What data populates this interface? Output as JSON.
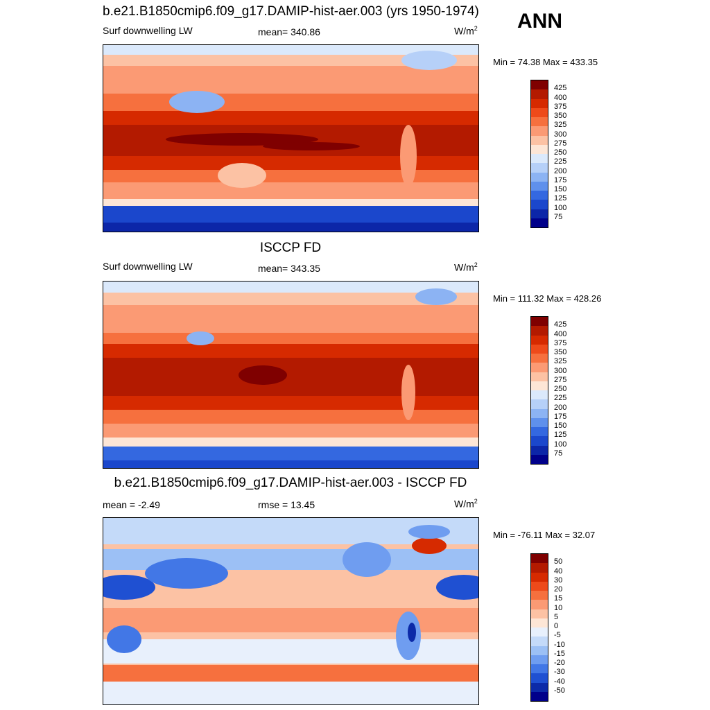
{
  "season": "ANN",
  "panels": [
    {
      "title": "b.e21.B1850cmip6.f09_g17.DAMIP-hist-aer.003 (yrs 1950-1974)",
      "left_text": "Surf downwelling LW",
      "center_text": "mean= 340.86",
      "units_base": "W/m",
      "units_sup": "2",
      "minmax": "Min =  74.38 Max = 433.35",
      "kind": "model"
    },
    {
      "title": "ISCCP FD",
      "left_text": "Surf downwelling LW",
      "center_text": "mean= 343.35",
      "units_base": "W/m",
      "units_sup": "2",
      "minmax": "Min = 111.32 Max = 428.26",
      "kind": "obs"
    },
    {
      "title": "b.e21.B1850cmip6.f09_g17.DAMIP-hist-aer.003 - ISCCP FD",
      "left_text": "mean =  -2.49",
      "center_text": "rmse =  13.45",
      "units_base": "W/m",
      "units_sup": "2",
      "minmax": "Min = -76.11 Max =  32.07",
      "kind": "diff"
    }
  ],
  "colorbar_abs": {
    "labels": [
      "425",
      "400",
      "375",
      "350",
      "325",
      "300",
      "275",
      "250",
      "225",
      "200",
      "175",
      "150",
      "125",
      "100",
      "75"
    ],
    "colors": [
      "#7f0000",
      "#b31a00",
      "#d62a00",
      "#ee4a1a",
      "#f6703e",
      "#fb9a74",
      "#fcc2a4",
      "#fde6d6",
      "#dbe9fb",
      "#b6d0f8",
      "#8cb3f3",
      "#5f90ec",
      "#3468e0",
      "#1b47cc",
      "#0c26a8",
      "#00008a"
    ]
  },
  "colorbar_diff": {
    "labels": [
      "50",
      "40",
      "30",
      "20",
      "15",
      "10",
      "5",
      "0",
      "-5",
      "-10",
      "-15",
      "-20",
      "-30",
      "-40",
      "-50"
    ],
    "colors": [
      "#7f0000",
      "#b31a00",
      "#d62a00",
      "#ee4a1a",
      "#f6703e",
      "#fb9a74",
      "#fcc2a4",
      "#fde6d6",
      "#e8f0fc",
      "#c4daf9",
      "#9cc0f5",
      "#6f9df0",
      "#4277e6",
      "#1f50d2",
      "#0c2aa8",
      "#00008a"
    ]
  }
}
